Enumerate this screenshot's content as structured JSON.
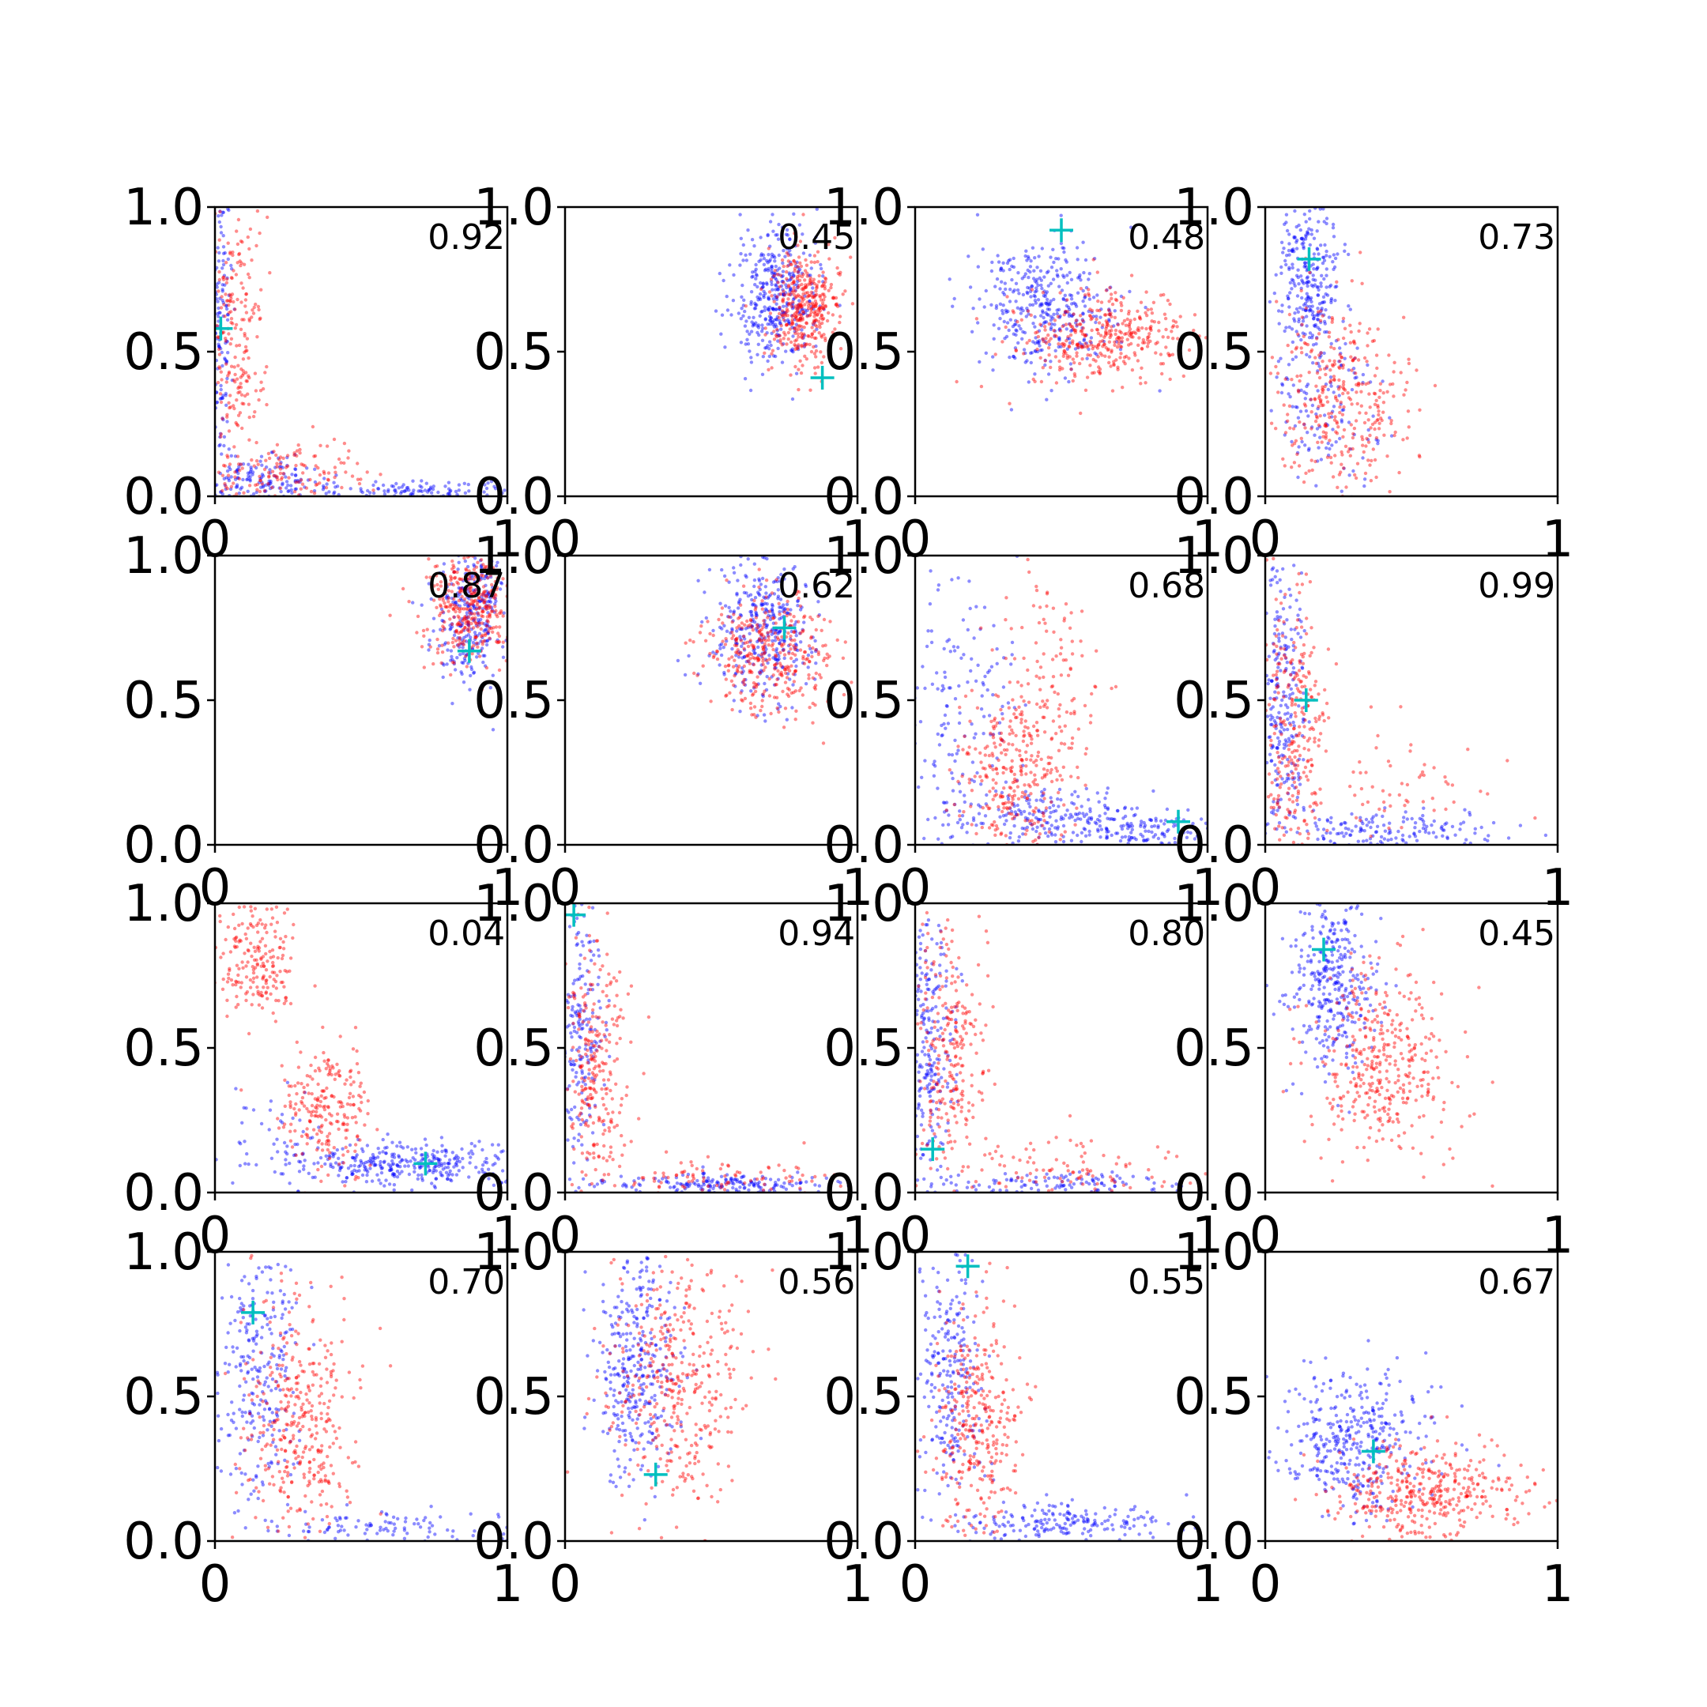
{
  "figure": {
    "grid": "4x4",
    "colors": {
      "series_a": "#0000ff",
      "series_b": "#ff0000",
      "marker": "#00bfbf"
    }
  },
  "chart_data": [
    {
      "type": "scatter",
      "annotation": "0.92",
      "xlim": [
        0,
        1
      ],
      "ylim": [
        0,
        1
      ],
      "x_ticks": [
        "0",
        "1"
      ],
      "y_ticks": [
        "0.0",
        "0.5",
        "1.0"
      ],
      "series": [
        {
          "color": "#0000ff",
          "clusters": [
            {
              "cx": 0.02,
              "cy": 0.6,
              "sx": 0.02,
              "sy": 0.3,
              "n": 160
            },
            {
              "cx": 0.15,
              "cy": 0.05,
              "sx": 0.12,
              "sy": 0.04,
              "n": 160
            },
            {
              "cx": 0.7,
              "cy": 0.02,
              "sx": 0.2,
              "sy": 0.015,
              "n": 120
            }
          ]
        },
        {
          "color": "#ff0000",
          "clusters": [
            {
              "cx": 0.07,
              "cy": 0.55,
              "sx": 0.05,
              "sy": 0.25,
              "n": 220
            },
            {
              "cx": 0.25,
              "cy": 0.08,
              "sx": 0.15,
              "sy": 0.06,
              "n": 160
            }
          ]
        }
      ],
      "marker": {
        "x": 0.02,
        "y": 0.58
      }
    },
    {
      "type": "scatter",
      "annotation": "0.45",
      "xlim": [
        0,
        1
      ],
      "ylim": [
        0,
        1
      ],
      "x_ticks": [
        "0",
        "1"
      ],
      "y_ticks": [
        "0.0",
        "0.5",
        "1.0"
      ],
      "series": [
        {
          "color": "#0000ff",
          "clusters": [
            {
              "cx": 0.72,
              "cy": 0.7,
              "sx": 0.07,
              "sy": 0.12,
              "n": 380
            }
          ]
        },
        {
          "color": "#ff0000",
          "clusters": [
            {
              "cx": 0.82,
              "cy": 0.65,
              "sx": 0.06,
              "sy": 0.1,
              "n": 380
            }
          ]
        }
      ],
      "marker": {
        "x": 0.88,
        "y": 0.41
      }
    },
    {
      "type": "scatter",
      "annotation": "0.48",
      "xlim": [
        0,
        1
      ],
      "ylim": [
        0,
        1
      ],
      "x_ticks": [
        "0",
        "1"
      ],
      "y_ticks": [
        "0.0",
        "0.5",
        "1.0"
      ],
      "series": [
        {
          "color": "#0000ff",
          "clusters": [
            {
              "cx": 0.45,
              "cy": 0.65,
              "sx": 0.12,
              "sy": 0.12,
              "n": 380
            }
          ]
        },
        {
          "color": "#ff0000",
          "clusters": [
            {
              "cx": 0.65,
              "cy": 0.55,
              "sx": 0.15,
              "sy": 0.08,
              "n": 380
            }
          ]
        }
      ],
      "marker": {
        "x": 0.5,
        "y": 0.92
      }
    },
    {
      "type": "scatter",
      "annotation": "0.73",
      "xlim": [
        0,
        1
      ],
      "ylim": [
        0,
        1
      ],
      "x_ticks": [
        "0",
        "1"
      ],
      "y_ticks": [
        "0.0",
        "0.5",
        "1.0"
      ],
      "series": [
        {
          "color": "#0000ff",
          "clusters": [
            {
              "cx": 0.15,
              "cy": 0.75,
              "sx": 0.05,
              "sy": 0.17,
              "n": 300
            },
            {
              "cx": 0.2,
              "cy": 0.3,
              "sx": 0.1,
              "sy": 0.12,
              "n": 120
            }
          ]
        },
        {
          "color": "#ff0000",
          "clusters": [
            {
              "cx": 0.25,
              "cy": 0.35,
              "sx": 0.12,
              "sy": 0.17,
              "n": 340
            }
          ]
        }
      ],
      "marker": {
        "x": 0.15,
        "y": 0.82
      }
    },
    {
      "type": "scatter",
      "annotation": "0.87",
      "xlim": [
        0,
        1
      ],
      "ylim": [
        0,
        1
      ],
      "x_ticks": [
        "0",
        "1"
      ],
      "y_ticks": [
        "0.0",
        "0.5",
        "1.0"
      ],
      "series": [
        {
          "color": "#0000ff",
          "clusters": [
            {
              "cx": 0.88,
              "cy": 0.8,
              "sx": 0.06,
              "sy": 0.12,
              "n": 300
            }
          ]
        },
        {
          "color": "#ff0000",
          "clusters": [
            {
              "cx": 0.88,
              "cy": 0.83,
              "sx": 0.08,
              "sy": 0.1,
              "n": 360
            }
          ]
        }
      ],
      "marker": {
        "x": 0.87,
        "y": 0.67
      }
    },
    {
      "type": "scatter",
      "annotation": "0.62",
      "xlim": [
        0,
        1
      ],
      "ylim": [
        0,
        1
      ],
      "x_ticks": [
        "0",
        "1"
      ],
      "y_ticks": [
        "0.0",
        "0.5",
        "1.0"
      ],
      "series": [
        {
          "color": "#0000ff",
          "clusters": [
            {
              "cx": 0.68,
              "cy": 0.75,
              "sx": 0.09,
              "sy": 0.12,
              "n": 360
            }
          ]
        },
        {
          "color": "#ff0000",
          "clusters": [
            {
              "cx": 0.7,
              "cy": 0.65,
              "sx": 0.11,
              "sy": 0.11,
              "n": 360
            }
          ]
        }
      ],
      "marker": {
        "x": 0.75,
        "y": 0.75
      }
    },
    {
      "type": "scatter",
      "annotation": "0.68",
      "xlim": [
        0,
        1
      ],
      "ylim": [
        0,
        1
      ],
      "x_ticks": [
        "0",
        "1"
      ],
      "y_ticks": [
        "0.0",
        "0.5",
        "1.0"
      ],
      "series": [
        {
          "color": "#0000ff",
          "clusters": [
            {
              "cx": 0.15,
              "cy": 0.45,
              "sx": 0.1,
              "sy": 0.25,
              "n": 160
            },
            {
              "cx": 0.45,
              "cy": 0.1,
              "sx": 0.18,
              "sy": 0.05,
              "n": 200
            },
            {
              "cx": 0.8,
              "cy": 0.05,
              "sx": 0.12,
              "sy": 0.03,
              "n": 120
            }
          ]
        },
        {
          "color": "#ff0000",
          "clusters": [
            {
              "cx": 0.35,
              "cy": 0.25,
              "sx": 0.1,
              "sy": 0.15,
              "n": 300
            },
            {
              "cx": 0.45,
              "cy": 0.6,
              "sx": 0.1,
              "sy": 0.15,
              "n": 100
            }
          ]
        }
      ],
      "marker": {
        "x": 0.9,
        "y": 0.08
      }
    },
    {
      "type": "scatter",
      "annotation": "0.99",
      "xlim": [
        0,
        1
      ],
      "ylim": [
        0,
        1
      ],
      "x_ticks": [
        "0",
        "1"
      ],
      "y_ticks": [
        "0.0",
        "0.5",
        "1.0"
      ],
      "series": [
        {
          "color": "#0000ff",
          "clusters": [
            {
              "cx": 0.06,
              "cy": 0.5,
              "sx": 0.04,
              "sy": 0.27,
              "n": 260
            },
            {
              "cx": 0.4,
              "cy": 0.05,
              "sx": 0.2,
              "sy": 0.04,
              "n": 160
            }
          ]
        },
        {
          "color": "#ff0000",
          "clusters": [
            {
              "cx": 0.1,
              "cy": 0.4,
              "sx": 0.06,
              "sy": 0.25,
              "n": 280
            },
            {
              "cx": 0.45,
              "cy": 0.2,
              "sx": 0.15,
              "sy": 0.1,
              "n": 60
            }
          ]
        }
      ],
      "marker": {
        "x": 0.14,
        "y": 0.5
      }
    },
    {
      "type": "scatter",
      "annotation": "0.04",
      "xlim": [
        0,
        1
      ],
      "ylim": [
        0,
        1
      ],
      "x_ticks": [
        "0",
        "1"
      ],
      "y_ticks": [
        "0.0",
        "0.5",
        "1.0"
      ],
      "series": [
        {
          "color": "#0000ff",
          "clusters": [
            {
              "cx": 0.65,
              "cy": 0.1,
              "sx": 0.2,
              "sy": 0.04,
              "n": 340
            },
            {
              "cx": 0.2,
              "cy": 0.2,
              "sx": 0.1,
              "sy": 0.08,
              "n": 40
            }
          ]
        },
        {
          "color": "#ff0000",
          "clusters": [
            {
              "cx": 0.15,
              "cy": 0.8,
              "sx": 0.07,
              "sy": 0.1,
              "n": 200
            },
            {
              "cx": 0.38,
              "cy": 0.3,
              "sx": 0.07,
              "sy": 0.12,
              "n": 220
            }
          ]
        }
      ],
      "marker": {
        "x": 0.72,
        "y": 0.1
      }
    },
    {
      "type": "scatter",
      "annotation": "0.94",
      "xlim": [
        0,
        1
      ],
      "ylim": [
        0,
        1
      ],
      "x_ticks": [
        "0",
        "1"
      ],
      "y_ticks": [
        "0.0",
        "0.5",
        "1.0"
      ],
      "series": [
        {
          "color": "#0000ff",
          "clusters": [
            {
              "cx": 0.05,
              "cy": 0.5,
              "sx": 0.04,
              "sy": 0.25,
              "n": 200
            },
            {
              "cx": 0.5,
              "cy": 0.03,
              "sx": 0.2,
              "sy": 0.02,
              "n": 180
            }
          ]
        },
        {
          "color": "#ff0000",
          "clusters": [
            {
              "cx": 0.1,
              "cy": 0.4,
              "sx": 0.06,
              "sy": 0.27,
              "n": 280
            },
            {
              "cx": 0.55,
              "cy": 0.05,
              "sx": 0.2,
              "sy": 0.04,
              "n": 100
            }
          ]
        }
      ],
      "marker": {
        "x": 0.03,
        "y": 0.96
      }
    },
    {
      "type": "scatter",
      "annotation": "0.80",
      "xlim": [
        0,
        1
      ],
      "ylim": [
        0,
        1
      ],
      "x_ticks": [
        "0",
        "1"
      ],
      "y_ticks": [
        "0.0",
        "0.5",
        "1.0"
      ],
      "series": [
        {
          "color": "#0000ff",
          "clusters": [
            {
              "cx": 0.05,
              "cy": 0.5,
              "sx": 0.04,
              "sy": 0.25,
              "n": 240
            },
            {
              "cx": 0.5,
              "cy": 0.03,
              "sx": 0.2,
              "sy": 0.02,
              "n": 120
            }
          ]
        },
        {
          "color": "#ff0000",
          "clusters": [
            {
              "cx": 0.12,
              "cy": 0.5,
              "sx": 0.06,
              "sy": 0.25,
              "n": 260
            },
            {
              "cx": 0.55,
              "cy": 0.08,
              "sx": 0.2,
              "sy": 0.06,
              "n": 100
            }
          ]
        }
      ],
      "marker": {
        "x": 0.06,
        "y": 0.15
      }
    },
    {
      "type": "scatter",
      "annotation": "0.45",
      "xlim": [
        0,
        1
      ],
      "ylim": [
        0,
        1
      ],
      "x_ticks": [
        "0",
        "1"
      ],
      "y_ticks": [
        "0.0",
        "0.5",
        "1.0"
      ],
      "series": [
        {
          "color": "#0000ff",
          "clusters": [
            {
              "cx": 0.22,
              "cy": 0.72,
              "sx": 0.07,
              "sy": 0.15,
              "n": 340
            }
          ]
        },
        {
          "color": "#ff0000",
          "clusters": [
            {
              "cx": 0.4,
              "cy": 0.45,
              "sx": 0.12,
              "sy": 0.17,
              "n": 380
            }
          ]
        }
      ],
      "marker": {
        "x": 0.2,
        "y": 0.84
      }
    },
    {
      "type": "scatter",
      "annotation": "0.70",
      "xlim": [
        0,
        1
      ],
      "ylim": [
        0,
        1
      ],
      "x_ticks": [
        "0",
        "1"
      ],
      "y_ticks": [
        "0.0",
        "0.5",
        "1.0"
      ],
      "series": [
        {
          "color": "#0000ff",
          "clusters": [
            {
              "cx": 0.15,
              "cy": 0.6,
              "sx": 0.07,
              "sy": 0.22,
              "n": 260
            },
            {
              "cx": 0.55,
              "cy": 0.05,
              "sx": 0.22,
              "sy": 0.03,
              "n": 100
            }
          ]
        },
        {
          "color": "#ff0000",
          "clusters": [
            {
              "cx": 0.28,
              "cy": 0.4,
              "sx": 0.1,
              "sy": 0.2,
              "n": 360
            }
          ]
        }
      ],
      "marker": {
        "x": 0.13,
        "y": 0.79
      }
    },
    {
      "type": "scatter",
      "annotation": "0.56",
      "xlim": [
        0,
        1
      ],
      "ylim": [
        0,
        1
      ],
      "x_ticks": [
        "0",
        "1"
      ],
      "y_ticks": [
        "0.0",
        "0.5",
        "1.0"
      ],
      "series": [
        {
          "color": "#0000ff",
          "clusters": [
            {
              "cx": 0.25,
              "cy": 0.6,
              "sx": 0.07,
              "sy": 0.2,
              "n": 340
            }
          ]
        },
        {
          "color": "#ff0000",
          "clusters": [
            {
              "cx": 0.38,
              "cy": 0.55,
              "sx": 0.12,
              "sy": 0.22,
              "n": 380
            }
          ]
        }
      ],
      "marker": {
        "x": 0.31,
        "y": 0.23
      }
    },
    {
      "type": "scatter",
      "annotation": "0.55",
      "xlim": [
        0,
        1
      ],
      "ylim": [
        0,
        1
      ],
      "x_ticks": [
        "0",
        "1"
      ],
      "y_ticks": [
        "0.0",
        "0.5",
        "1.0"
      ],
      "series": [
        {
          "color": "#0000ff",
          "clusters": [
            {
              "cx": 0.12,
              "cy": 0.6,
              "sx": 0.06,
              "sy": 0.22,
              "n": 240
            },
            {
              "cx": 0.55,
              "cy": 0.06,
              "sx": 0.2,
              "sy": 0.04,
              "n": 200
            }
          ]
        },
        {
          "color": "#ff0000",
          "clusters": [
            {
              "cx": 0.22,
              "cy": 0.4,
              "sx": 0.07,
              "sy": 0.22,
              "n": 340
            }
          ]
        }
      ],
      "marker": {
        "x": 0.18,
        "y": 0.95
      }
    },
    {
      "type": "scatter",
      "annotation": "0.67",
      "xlim": [
        0,
        1
      ],
      "ylim": [
        0,
        1
      ],
      "x_ticks": [
        "0",
        "1"
      ],
      "y_ticks": [
        "0.0",
        "0.5",
        "1.0"
      ],
      "series": [
        {
          "color": "#0000ff",
          "clusters": [
            {
              "cx": 0.3,
              "cy": 0.35,
              "sx": 0.12,
              "sy": 0.13,
              "n": 380
            }
          ]
        },
        {
          "color": "#ff0000",
          "clusters": [
            {
              "cx": 0.55,
              "cy": 0.17,
              "sx": 0.17,
              "sy": 0.08,
              "n": 400
            }
          ]
        }
      ],
      "marker": {
        "x": 0.37,
        "y": 0.31
      }
    }
  ]
}
